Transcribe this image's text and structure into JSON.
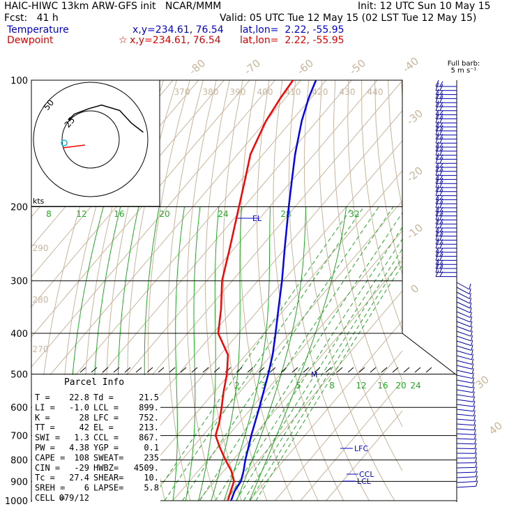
{
  "header": {
    "title": "HAIC-HIWC 13km ARW-GFS init   NCAR/MMM",
    "init": "Init: 12 UTC Sun 10 May 15",
    "fcst": "Fcst:   41 h",
    "valid": "Valid: 05 UTC Tue 12 May 15 (02 LST Tue 12 May 15)",
    "temp_label": "Temperature",
    "temp_xy": "x,y=234.61, 76.54",
    "temp_latlon": "lat,lon=  2.22, -55.95",
    "dew_label": "Dewpoint",
    "dew_marker": "☆",
    "dew_xy": "x,y=234.61, 76.54",
    "dew_latlon": "lat,lon=  2.22, -55.95"
  },
  "barb_legend": {
    "line1": "Full barb:",
    "line2": "5 m s⁻¹"
  },
  "hodograph": {
    "unit": "kts",
    "rings": [
      "50",
      "25"
    ]
  },
  "parcel_info": {
    "title": "Parcel Info",
    "rows": [
      [
        "T  =",
        "22.8",
        "Td =",
        "21.5"
      ],
      [
        "LI =",
        "-1.0",
        "LCL =",
        "899."
      ],
      [
        "K  =",
        "28",
        "LFC =",
        "752."
      ],
      [
        "TT =",
        "42",
        "EL =",
        "213."
      ],
      [
        "SWI =",
        "1.3",
        "CCL =",
        "867."
      ],
      [
        "PW =",
        "4.38",
        "YGP =",
        "0.1"
      ],
      [
        "CAPE =",
        "108",
        "SWEAT=",
        "235"
      ],
      [
        "CIN =",
        "-29",
        "HWBZ=",
        "4509."
      ],
      [
        "Tc =",
        "27.4",
        "SHEAR=",
        "10."
      ],
      [
        "SREH =",
        "6",
        "LAPSE=",
        "5.8"
      ],
      [
        "CELL =",
        "079/12",
        "",
        ""
      ]
    ]
  },
  "chart_data": {
    "type": "line",
    "title": "Skew-T log-P sounding",
    "y_axis": {
      "scale": "log",
      "range": [
        1000,
        100
      ],
      "tick_labels": [
        "100",
        "200",
        "300",
        "400",
        "500",
        "600",
        "700",
        "800",
        "900",
        "1000"
      ]
    },
    "x_axis": {
      "skewed": true
    },
    "isotherm_labels": [
      "-80",
      "-70",
      "-60",
      "-50",
      "-40",
      "-30",
      "-20",
      "-10",
      "0",
      "30",
      "40"
    ],
    "theta_labels": [
      "370",
      "380",
      "390",
      "400",
      "410",
      "420",
      "430",
      "440",
      "290",
      "280",
      "270"
    ],
    "mixing_ratio_labels_top": [
      "8",
      "12",
      "16",
      "20",
      "24",
      "28",
      "32"
    ],
    "mixing_ratio_labels_low": [
      "2",
      "3",
      "5",
      "8",
      "12",
      "16",
      "20",
      "24"
    ],
    "series": [
      {
        "name": "Temperature",
        "color": "#0000ff",
        "points": [
          [
            1000,
            22.8
          ],
          [
            950,
            21.0
          ],
          [
            900,
            20.2
          ],
          [
            850,
            17.8
          ],
          [
            800,
            14.8
          ],
          [
            750,
            12.0
          ],
          [
            700,
            9.0
          ],
          [
            650,
            6.0
          ],
          [
            600,
            2.8
          ],
          [
            550,
            -0.8
          ],
          [
            500,
            -4.8
          ],
          [
            450,
            -9.5
          ],
          [
            400,
            -15.5
          ],
          [
            350,
            -22.5
          ],
          [
            300,
            -30.5
          ],
          [
            250,
            -40.5
          ],
          [
            200,
            -52.5
          ],
          [
            175,
            -59.5
          ],
          [
            150,
            -67.5
          ],
          [
            125,
            -76.0
          ],
          [
            110,
            -81.0
          ],
          [
            100,
            -84.0
          ]
        ]
      },
      {
        "name": "Dewpoint",
        "color": "#ff0000",
        "points": [
          [
            1000,
            21.5
          ],
          [
            950,
            19.5
          ],
          [
            900,
            17.5
          ],
          [
            850,
            13.0
          ],
          [
            800,
            7.0
          ],
          [
            750,
            1.0
          ],
          [
            700,
            -5.0
          ],
          [
            650,
            -8.0
          ],
          [
            600,
            -12.0
          ],
          [
            550,
            -16.5
          ],
          [
            500,
            -21.0
          ],
          [
            450,
            -27.0
          ],
          [
            400,
            -38.0
          ],
          [
            350,
            -45.0
          ],
          [
            300,
            -54.0
          ],
          [
            250,
            -62.0
          ],
          [
            200,
            -72.0
          ],
          [
            175,
            -78.0
          ],
          [
            150,
            -85.0
          ],
          [
            125,
            -90.0
          ],
          [
            110,
            -92.0
          ],
          [
            100,
            -93.0
          ]
        ]
      }
    ],
    "level_labels": [
      "EL",
      "M",
      "LFC",
      "CCL",
      "LCL"
    ],
    "hodograph_trace": [
      [
        0.58,
        0.08
      ],
      [
        0.45,
        0.18
      ],
      [
        0.32,
        0.32
      ],
      [
        0.12,
        0.38
      ],
      [
        -0.02,
        0.34
      ],
      [
        -0.18,
        0.28
      ],
      [
        -0.24,
        0.22
      ]
    ]
  },
  "colors": {
    "temperature": "#0000ff",
    "dewpoint": "#ff0000",
    "isotherm": "#c8b49a",
    "mixing": "#22aa22",
    "isobar": "#000000"
  }
}
